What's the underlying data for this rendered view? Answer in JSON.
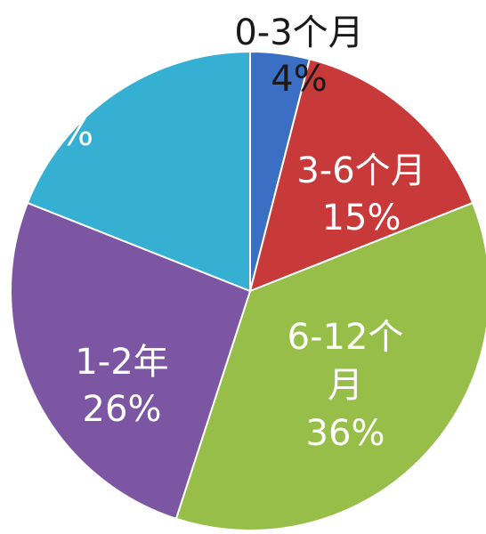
{
  "chart_data": {
    "type": "pie",
    "title": "",
    "legend": "none",
    "start_angle": "12 o'clock",
    "direction": "clockwise",
    "slices": [
      {
        "name_key": "s0",
        "label": "0-3个月",
        "label_lines": [
          "0-3个月"
        ],
        "pct_text": "4%",
        "value": 4,
        "color": "#3A6FC4"
      },
      {
        "name_key": "s1",
        "label": "3-6个月",
        "label_lines": [
          "3-6个月"
        ],
        "pct_text": "15%",
        "value": 15,
        "color": "#C8393A"
      },
      {
        "name_key": "s2",
        "label": "6-12个月",
        "label_lines": [
          "6-12个",
          "月"
        ],
        "pct_text": "36%",
        "value": 36,
        "color": "#96BE48"
      },
      {
        "name_key": "s3",
        "label": "1-2年",
        "label_lines": [
          "1-2年"
        ],
        "pct_text": "26%",
        "value": 26,
        "color": "#7C55A3"
      },
      {
        "name_key": "s4",
        "label": "",
        "label_lines": [],
        "pct_text": "%",
        "value": 19,
        "color": "#35AFD2"
      }
    ]
  }
}
